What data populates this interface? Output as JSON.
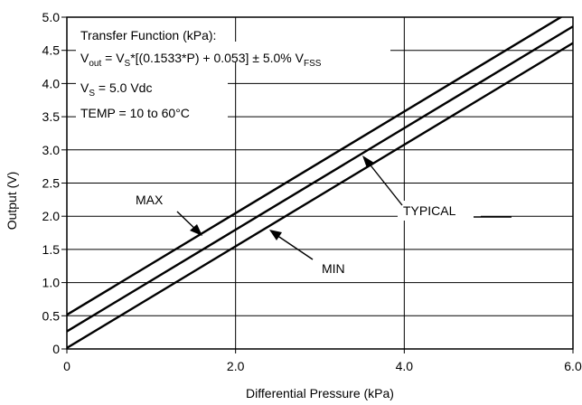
{
  "chart_data": {
    "type": "line",
    "xlabel": "Differential Pressure (kPa)",
    "ylabel": "Output (V)",
    "xlim": [
      0,
      6.0
    ],
    "ylim": [
      0,
      5.0
    ],
    "x_ticks": [
      "0",
      "2.0",
      "4.0",
      "6.0"
    ],
    "y_ticks": [
      "0",
      "0.5",
      "1.0",
      "1.5",
      "2.0",
      "2.5",
      "3.0",
      "3.5",
      "4.0",
      "4.5",
      "5.0"
    ],
    "grid": true,
    "series": [
      {
        "name": "MAX",
        "x": [
          0,
          6.0
        ],
        "y": [
          0.515,
          5.11
        ]
      },
      {
        "name": "TYPICAL",
        "x": [
          0,
          6.0
        ],
        "y": [
          0.265,
          4.86
        ]
      },
      {
        "name": "MIN",
        "x": [
          0,
          6.0
        ],
        "y": [
          0.015,
          4.61
        ]
      }
    ],
    "annotations": {
      "max_label": "MAX",
      "typical_label": "TYPICAL",
      "min_label": "MIN"
    },
    "transfer_function": {
      "heading": "Transfer Function (kPa):",
      "vout_main": "V",
      "vout_sub": "out",
      "eq_part1": " = V",
      "vs_sub": "S",
      "eq_part2": "*[(0.1533*P) + 0.053] ± 5.0% V",
      "fss_sub": "FSS",
      "supply_main": "V",
      "supply_sub": "S",
      "supply_value": " = 5.0 Vdc",
      "temp": "TEMP = 10 to 60°C"
    }
  }
}
